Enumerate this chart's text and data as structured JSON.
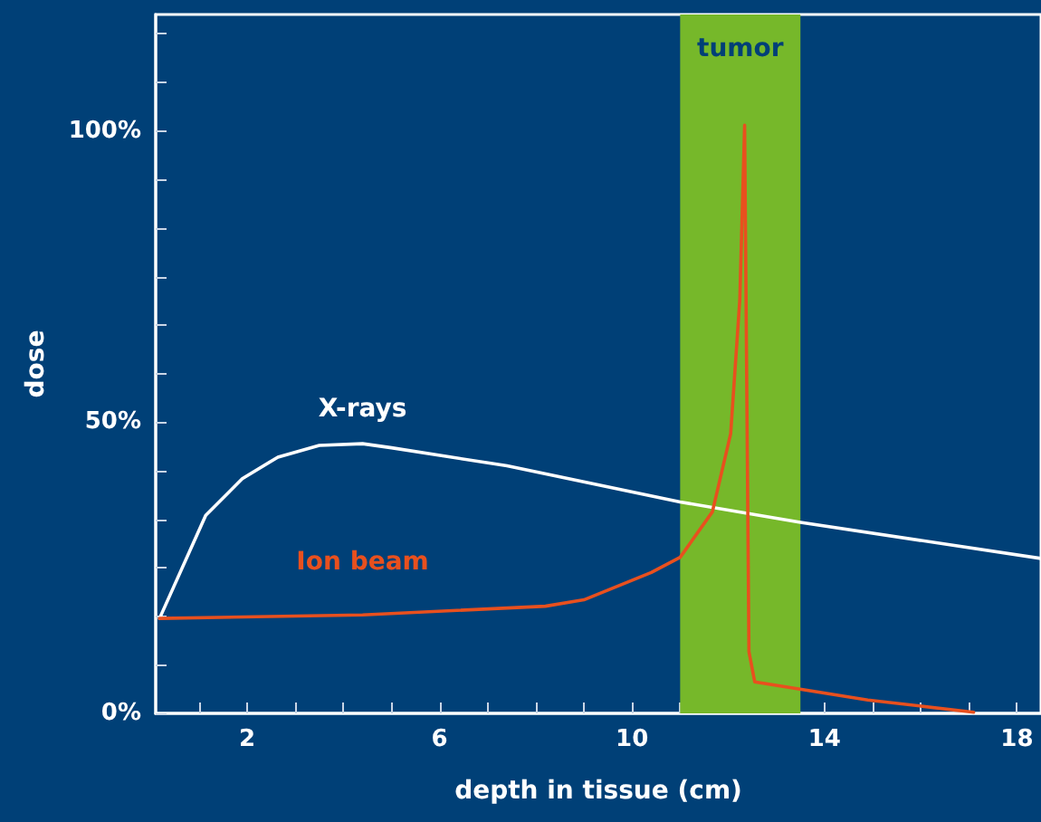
{
  "chart_data": {
    "type": "line",
    "xlabel": "depth in tissue (cm)",
    "ylabel": "dose",
    "xlim": [
      0.1,
      18.5
    ],
    "xticks": [
      {
        "value": 1,
        "label": null
      },
      2,
      {
        "value": 3,
        "label": null
      },
      {
        "value": 4,
        "label": null
      },
      {
        "value": 5,
        "label": null
      },
      6,
      {
        "value": 7,
        "label": null
      },
      {
        "value": 8,
        "label": null
      },
      {
        "value": 9,
        "label": null
      },
      10,
      {
        "value": 11,
        "label": null
      },
      {
        "value": 12,
        "label": null
      },
      {
        "value": 13,
        "label": null
      },
      14,
      {
        "value": 15,
        "label": null
      },
      {
        "value": 16,
        "label": null
      },
      {
        "value": 17,
        "label": null
      },
      18
    ],
    "ylim": [
      0,
      120
    ],
    "yticks": [
      {
        "value": 0,
        "label": "0%"
      },
      {
        "value": 8.3,
        "label": null
      },
      {
        "value": 16.7,
        "label": null
      },
      {
        "value": 25,
        "label": null
      },
      {
        "value": 33.3,
        "label": null
      },
      {
        "value": 41.7,
        "label": null
      },
      {
        "value": 50,
        "label": "50%"
      },
      {
        "value": 58.3,
        "label": null
      },
      {
        "value": 66.7,
        "label": null
      },
      {
        "value": 75,
        "label": null
      },
      {
        "value": 83.3,
        "label": null
      },
      {
        "value": 91.7,
        "label": null
      },
      {
        "value": 100,
        "label": "100%"
      },
      {
        "value": 108.3,
        "label": null
      },
      {
        "value": 116.7,
        "label": null
      }
    ],
    "grid": false,
    "legend": false,
    "marker": "none",
    "line_style": "solid",
    "bands": [
      {
        "axis": "x",
        "from": 11,
        "to": 13.5,
        "label": "tumor",
        "color": "#76b82a"
      }
    ],
    "series": [
      {
        "name": "X-rays",
        "color": "#ffffff",
        "x": [
          0.18,
          1.14,
          1.9,
          2.64,
          3.5,
          4.4,
          5.0,
          7.4,
          11,
          13.5,
          18.5
        ],
        "values": [
          16.3,
          34,
          40.3,
          44,
          46,
          46.3,
          45.6,
          42.5,
          36.3,
          32.8,
          26.6
        ]
      },
      {
        "name": "Ion beam",
        "color": "#e8501e",
        "x": [
          0.18,
          4.4,
          8.2,
          9.0,
          10.4,
          11,
          11.67,
          12.05,
          12.24,
          12.34,
          12.43,
          12.55,
          14.9,
          17.1
        ],
        "values": [
          16.3,
          16.9,
          18.4,
          19.5,
          24.2,
          26.8,
          34.6,
          48,
          71,
          101,
          10.6,
          5.4,
          2.3,
          0.2
        ]
      }
    ]
  }
}
